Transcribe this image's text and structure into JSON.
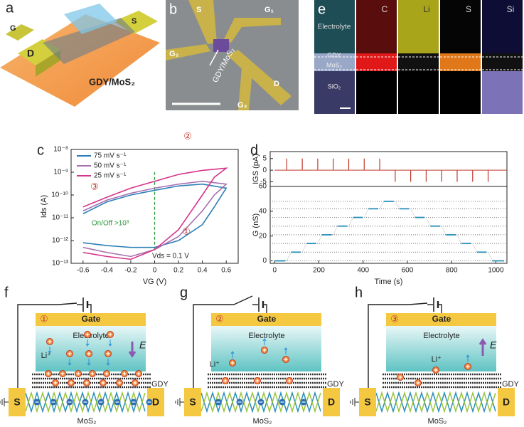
{
  "panel_labels": [
    "a",
    "b",
    "c",
    "d",
    "e",
    "f",
    "g",
    "h"
  ],
  "a": {
    "gate": "G",
    "drain": "D",
    "source": "S",
    "channel": "GDY/MoS₂"
  },
  "b": {
    "source": "S",
    "gates": [
      "G₁",
      "G₂",
      "G₃"
    ],
    "drain": "D",
    "channel": "GDY/MoS₂"
  },
  "e": {
    "columns": [
      "Electrolyte",
      "C",
      "Li",
      "S",
      "Si"
    ],
    "layers": [
      "GDY",
      "MoS₂",
      "SiO₂"
    ]
  },
  "chart_data": [
    {
      "type": "line",
      "x_label": "VG (V)",
      "y_label": "Ids (A)",
      "log_y": true,
      "xlim": [
        -0.7,
        0.7
      ],
      "xticks": [
        -0.6,
        -0.4,
        -0.2,
        0,
        0.2,
        0.4,
        0.6
      ],
      "ylim": [
        1e-13,
        1e-08
      ],
      "yticks": [
        {
          "value": 1e-13,
          "label": "10⁻¹³"
        },
        {
          "value": 1e-12,
          "label": "10⁻¹²"
        },
        {
          "value": 1e-11,
          "label": "10⁻¹¹"
        },
        {
          "value": 1e-10,
          "label": "10⁻¹⁰"
        },
        {
          "value": 1e-09,
          "label": "10⁻⁹"
        },
        {
          "value": 1e-08,
          "label": "10⁻⁸"
        }
      ],
      "annotations": [
        "②",
        "③",
        "①",
        "On/Off >10³",
        "Vds = 0.1 V"
      ],
      "series": [
        {
          "name": "75 mV s⁻¹",
          "color": "#2a7fb8",
          "x": [
            -0.6,
            -0.4,
            -0.2,
            0,
            0.2,
            0.4,
            0.5,
            0.6,
            0.4,
            0.2,
            0,
            -0.2,
            -0.4,
            -0.6
          ],
          "values": [
            8e-13,
            6e-13,
            5e-13,
            5e-13,
            1e-12,
            5e-12,
            3e-11,
            2e-10,
            3e-10,
            2.5e-10,
            1.6e-10,
            1e-10,
            5e-11,
            1.5e-11
          ]
        },
        {
          "name": "50 mV s⁻¹",
          "color": "#a76fb0",
          "x": [
            -0.6,
            -0.4,
            -0.2,
            0,
            0.2,
            0.4,
            0.5,
            0.6,
            0.4,
            0.2,
            0,
            -0.2,
            -0.4,
            -0.6
          ],
          "values": [
            5e-13,
            3e-13,
            2e-13,
            4e-13,
            1.5e-12,
            2e-11,
            1e-10,
            3e-10,
            4e-10,
            3e-10,
            2e-10,
            1.2e-10,
            6e-11,
            2e-11
          ]
        },
        {
          "name": "25 mV s⁻¹",
          "color": "#d6338a",
          "x": [
            -0.6,
            -0.4,
            -0.2,
            0,
            0.2,
            0.4,
            0.5,
            0.6,
            0.4,
            0.2,
            0,
            -0.2,
            -0.4,
            -0.6
          ],
          "values": [
            3e-13,
            2e-13,
            1.5e-13,
            4e-13,
            3e-12,
            1e-10,
            6e-10,
            1.5e-09,
            1.2e-09,
            8e-10,
            4e-10,
            2e-10,
            8e-11,
            3e-11
          ]
        }
      ]
    },
    {
      "type": "stem",
      "y_label": "IGS (pA)",
      "xlim": [
        -20,
        1050
      ],
      "ylim": [
        -7,
        8
      ],
      "yticks": [
        -5,
        0,
        5
      ],
      "color": "#c0392b",
      "x": [
        55,
        125,
        195,
        265,
        335,
        405,
        475,
        545,
        615,
        685,
        755,
        825,
        895,
        965
      ],
      "values": [
        5,
        5,
        5,
        5,
        5,
        5,
        5,
        -5,
        -5,
        -5,
        -5,
        -5,
        -5,
        -5
      ]
    },
    {
      "type": "step",
      "x_label": "Time (s)",
      "y_label": "G (nS)",
      "xlim": [
        -20,
        1050
      ],
      "ylim": [
        -2,
        60
      ],
      "xticks": [
        0,
        200,
        400,
        600,
        800,
        1000
      ],
      "yticks": [
        0,
        20,
        40,
        60
      ],
      "color": "#2a8fb8",
      "x": [
        0,
        55,
        125,
        195,
        265,
        335,
        405,
        475,
        545,
        615,
        685,
        755,
        825,
        895,
        965
      ],
      "values": [
        0,
        7,
        14,
        21,
        28,
        35,
        42,
        48,
        42,
        35,
        28,
        21,
        14,
        7,
        0
      ]
    }
  ],
  "diagrams": [
    {
      "step": "①",
      "gate": "Gate",
      "electrolyte": "Electrolyte",
      "ion": "Li⁺",
      "field": "E",
      "gdy": "GDY",
      "source": "S",
      "drain": "D",
      "channel": "MoS₂"
    },
    {
      "step": "②",
      "gate": "Gate",
      "electrolyte": "Electrolyte",
      "ion": "Li⁺",
      "gdy": "GDY",
      "source": "S",
      "drain": "D",
      "channel": "MoS₂"
    },
    {
      "step": "③",
      "gate": "Gate",
      "electrolyte": "Electrolyte",
      "ion": "Li⁺",
      "field": "E",
      "gdy": "GDY",
      "source": "S",
      "drain": "D",
      "channel": "MoS₂"
    }
  ]
}
